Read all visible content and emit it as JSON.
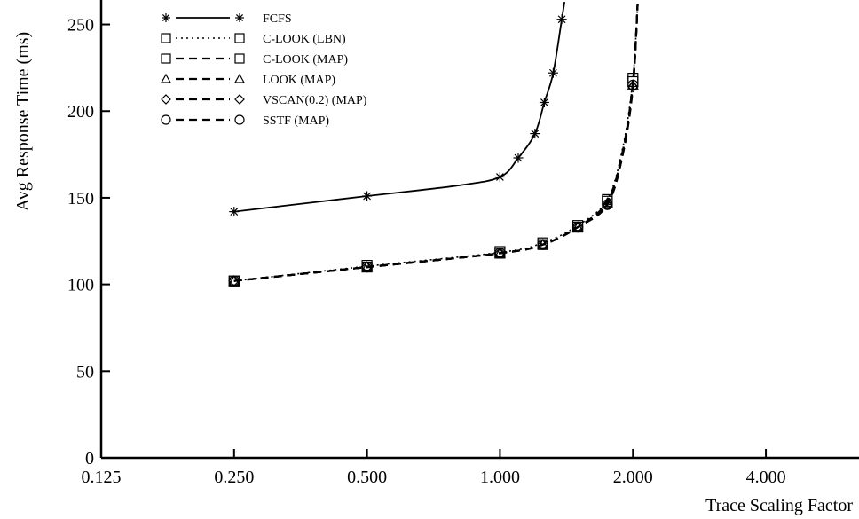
{
  "chart_data": {
    "type": "line",
    "title": "",
    "xlabel": "Trace Scaling Factor",
    "ylabel": "Avg Response Time (ms)",
    "x_scale": "log2",
    "xlim": [
      0.125,
      6.5
    ],
    "ylim": [
      0,
      260
    ],
    "x_ticks": [
      {
        "value": 0.125,
        "label": "0.125"
      },
      {
        "value": 0.25,
        "label": "0.250"
      },
      {
        "value": 0.5,
        "label": "0.500"
      },
      {
        "value": 1,
        "label": "1.000"
      },
      {
        "value": 2,
        "label": "2.000"
      },
      {
        "value": 4,
        "label": "4.000"
      }
    ],
    "y_ticks": [
      {
        "value": 0,
        "label": "0"
      },
      {
        "value": 50,
        "label": "50"
      },
      {
        "value": 100,
        "label": "100"
      },
      {
        "value": 150,
        "label": "150"
      },
      {
        "value": 200,
        "label": "200"
      },
      {
        "value": 250,
        "label": "250"
      }
    ],
    "grid": false,
    "legend_position": "top-left",
    "series": [
      {
        "name": "FCFS",
        "marker": "asterisk",
        "line": "solid",
        "marker_x": [
          0.25,
          0.5,
          1.0,
          1.1,
          1.2,
          1.26,
          1.32,
          1.38
        ],
        "marker_y": [
          142,
          151,
          162,
          173,
          187,
          205,
          222,
          253
        ],
        "curve_x": [
          0.25,
          0.5,
          0.8,
          1.0,
          1.1,
          1.2,
          1.26,
          1.32,
          1.38,
          1.4
        ],
        "curve_y": [
          142,
          151,
          157,
          162,
          173,
          187,
          205,
          222,
          253,
          263
        ]
      },
      {
        "name": "C-LOOK (LBN)",
        "marker": "square",
        "line": "dotted",
        "marker_x": [
          0.25,
          0.5,
          1.0,
          1.25,
          1.5,
          1.75,
          2.0
        ],
        "marker_y": [
          102,
          111,
          119,
          124,
          134,
          149,
          219
        ],
        "curve_x": [
          0.25,
          0.5,
          1.0,
          1.25,
          1.5,
          1.75,
          1.9,
          2.0,
          2.05
        ],
        "curve_y": [
          102,
          110.5,
          118.5,
          124,
          134,
          149,
          180,
          219,
          262
        ]
      },
      {
        "name": "C-LOOK (MAP)",
        "marker": "square",
        "line": "dashed",
        "marker_x": [
          0.25,
          0.5,
          1.0,
          1.25,
          1.5,
          1.75,
          2.0
        ],
        "marker_y": [
          102,
          110,
          118,
          123,
          133,
          148,
          217
        ],
        "curve_x": [
          0.25,
          0.5,
          1.0,
          1.25,
          1.5,
          1.75,
          1.9,
          2.0,
          2.05
        ],
        "curve_y": [
          102,
          110,
          118,
          123,
          133,
          148,
          178,
          217,
          262
        ]
      },
      {
        "name": "LOOK (MAP)",
        "marker": "triangle",
        "line": "dashed",
        "marker_x": [
          0.25,
          0.5,
          1.0,
          1.25,
          1.5,
          1.75,
          2.0
        ],
        "marker_y": [
          102,
          110,
          118,
          123,
          133,
          147,
          215
        ],
        "curve_x": [
          0.25,
          0.5,
          1.0,
          1.25,
          1.5,
          1.75,
          1.9,
          2.0,
          2.05
        ],
        "curve_y": [
          102,
          110,
          118,
          123,
          133,
          147,
          177,
          215,
          262
        ]
      },
      {
        "name": "VSCAN(0.2) (MAP)",
        "marker": "diamond",
        "line": "dashed",
        "marker_x": [
          0.25,
          0.5,
          1.0,
          1.25,
          1.5,
          1.75,
          2.0
        ],
        "marker_y": [
          102,
          110,
          118,
          123,
          133,
          146,
          214
        ],
        "curve_x": [
          0.25,
          0.5,
          1.0,
          1.25,
          1.5,
          1.75,
          1.9,
          2.0,
          2.05
        ],
        "curve_y": [
          102,
          110,
          118,
          123,
          133,
          146,
          176,
          214,
          262
        ]
      },
      {
        "name": "SSTF (MAP)",
        "marker": "circle",
        "line": "dashed",
        "marker_x": [
          0.25,
          0.5,
          1.0,
          1.25,
          1.5,
          1.75,
          2.0
        ],
        "marker_y": [
          102,
          110,
          118,
          123,
          133,
          146,
          215
        ],
        "curve_x": [
          0.25,
          0.5,
          1.0,
          1.25,
          1.5,
          1.75,
          1.9,
          2.0,
          2.05
        ],
        "curve_y": [
          102,
          110,
          118,
          123,
          133,
          146,
          176,
          215,
          262
        ]
      }
    ]
  }
}
